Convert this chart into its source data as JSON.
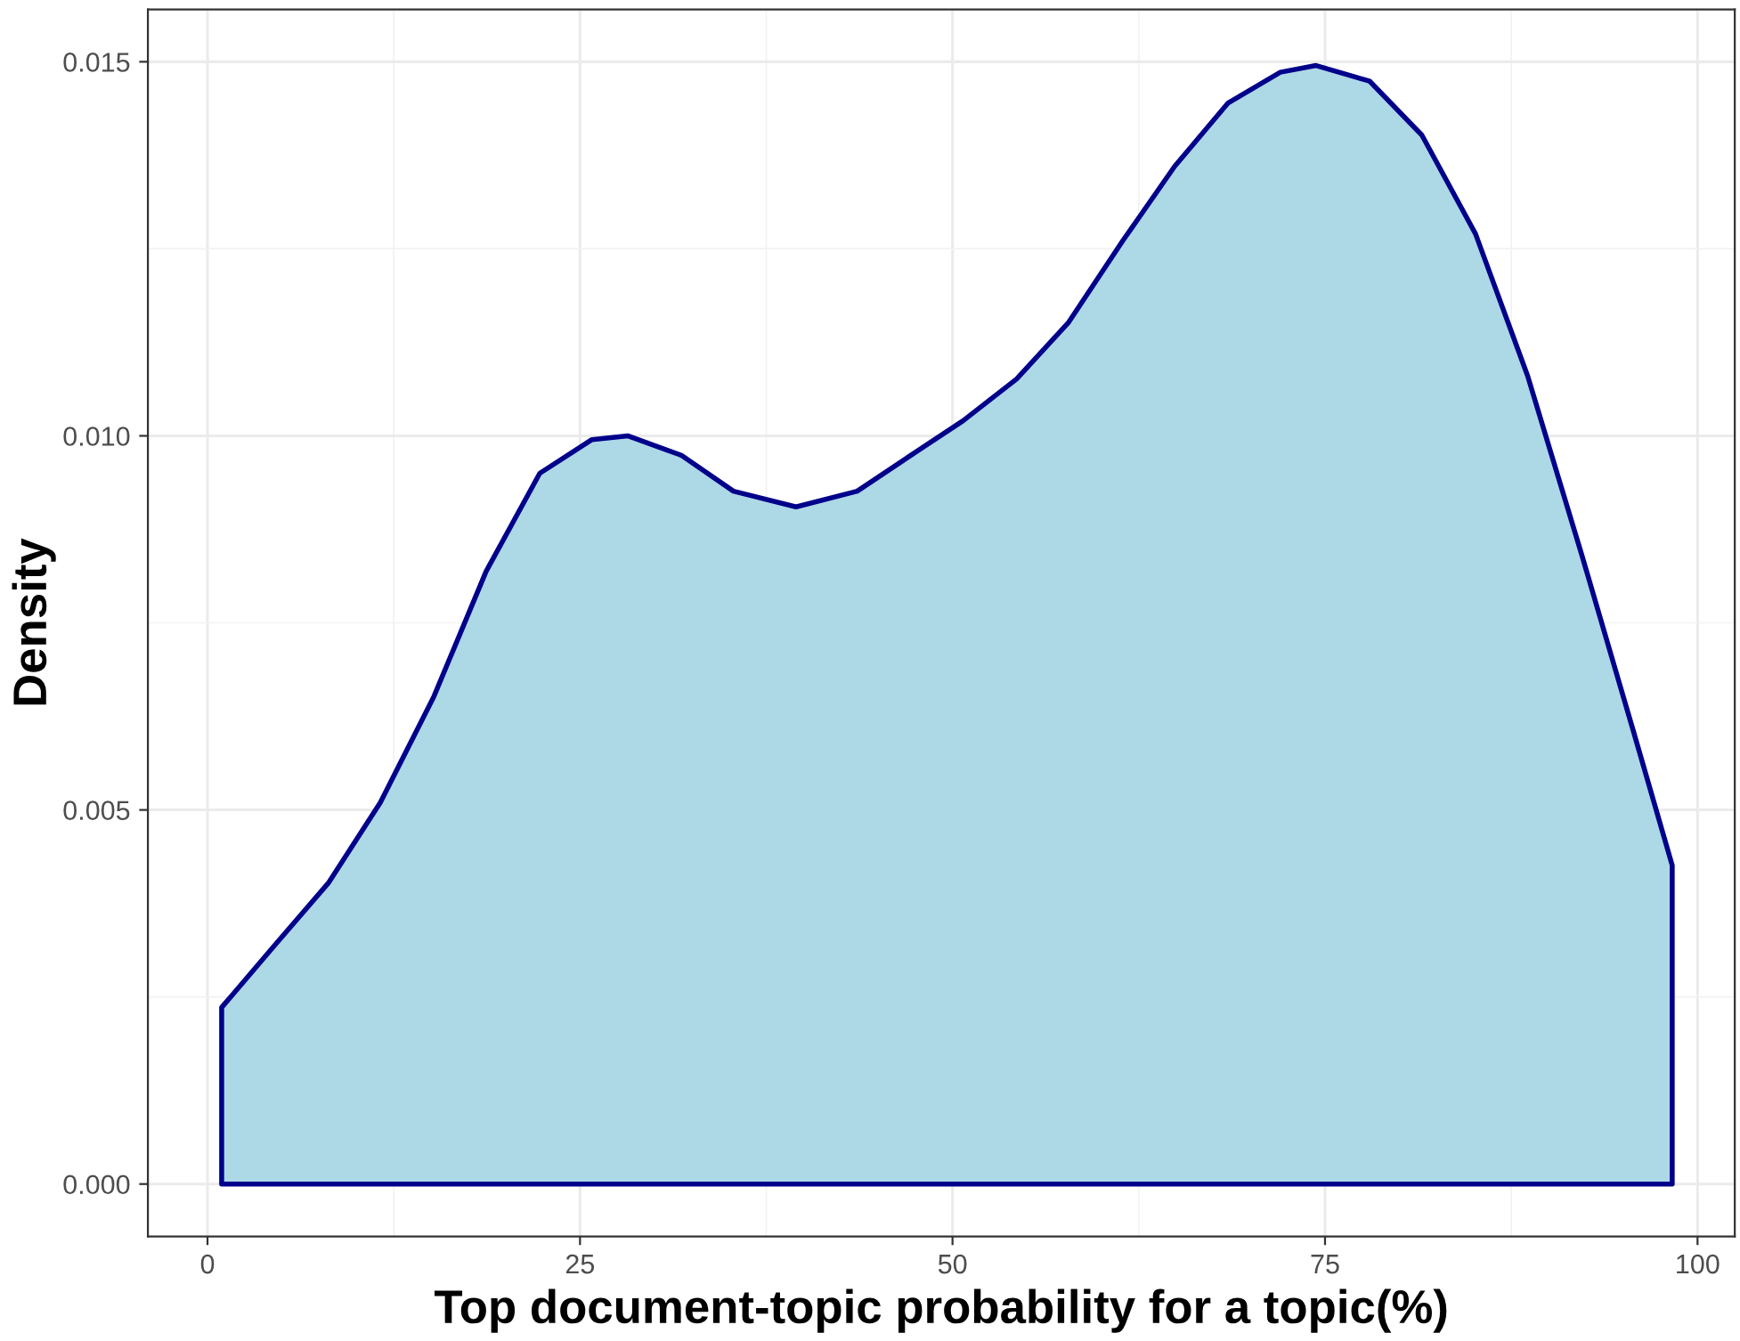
{
  "chart_data": {
    "type": "area",
    "xlabel": "Top document-topic probability for a topic(%)",
    "ylabel": "Density",
    "x": [
      0.95,
      4.5,
      8.1,
      11.6,
      15.2,
      18.7,
      22.3,
      25.8,
      28.2,
      31.8,
      35.3,
      39.5,
      43.6,
      47.2,
      50.7,
      54.3,
      57.8,
      61.4,
      64.9,
      68.5,
      72.0,
      74.4,
      78.0,
      81.5,
      85.1,
      88.6,
      92.2,
      95.7,
      98.3
    ],
    "series": [
      {
        "color": "#00008b",
        "values": [
          0.00236,
          0.00319,
          0.00402,
          0.0051,
          0.00652,
          0.00819,
          0.0095,
          0.00995,
          0.01,
          0.00974,
          0.00926,
          0.00905,
          0.00926,
          0.00974,
          0.0102,
          0.01076,
          0.01152,
          0.0126,
          0.0136,
          0.01445,
          0.01486,
          0.01495,
          0.01474,
          0.01402,
          0.0127,
          0.0108,
          0.00843,
          0.00605,
          0.00426
        ]
      }
    ],
    "xlim": [
      -4.0,
      102.5
    ],
    "ylim": [
      -0.0007,
      0.0157
    ],
    "xticks": [
      0,
      25,
      50,
      75,
      100
    ],
    "yticks": [
      {
        "value": 0,
        "label": "0.000"
      },
      {
        "value": 0.005,
        "label": "0.005"
      },
      {
        "value": 0.01,
        "label": "0.010"
      },
      {
        "value": 0.015,
        "label": "0.015"
      }
    ],
    "grid": true
  }
}
